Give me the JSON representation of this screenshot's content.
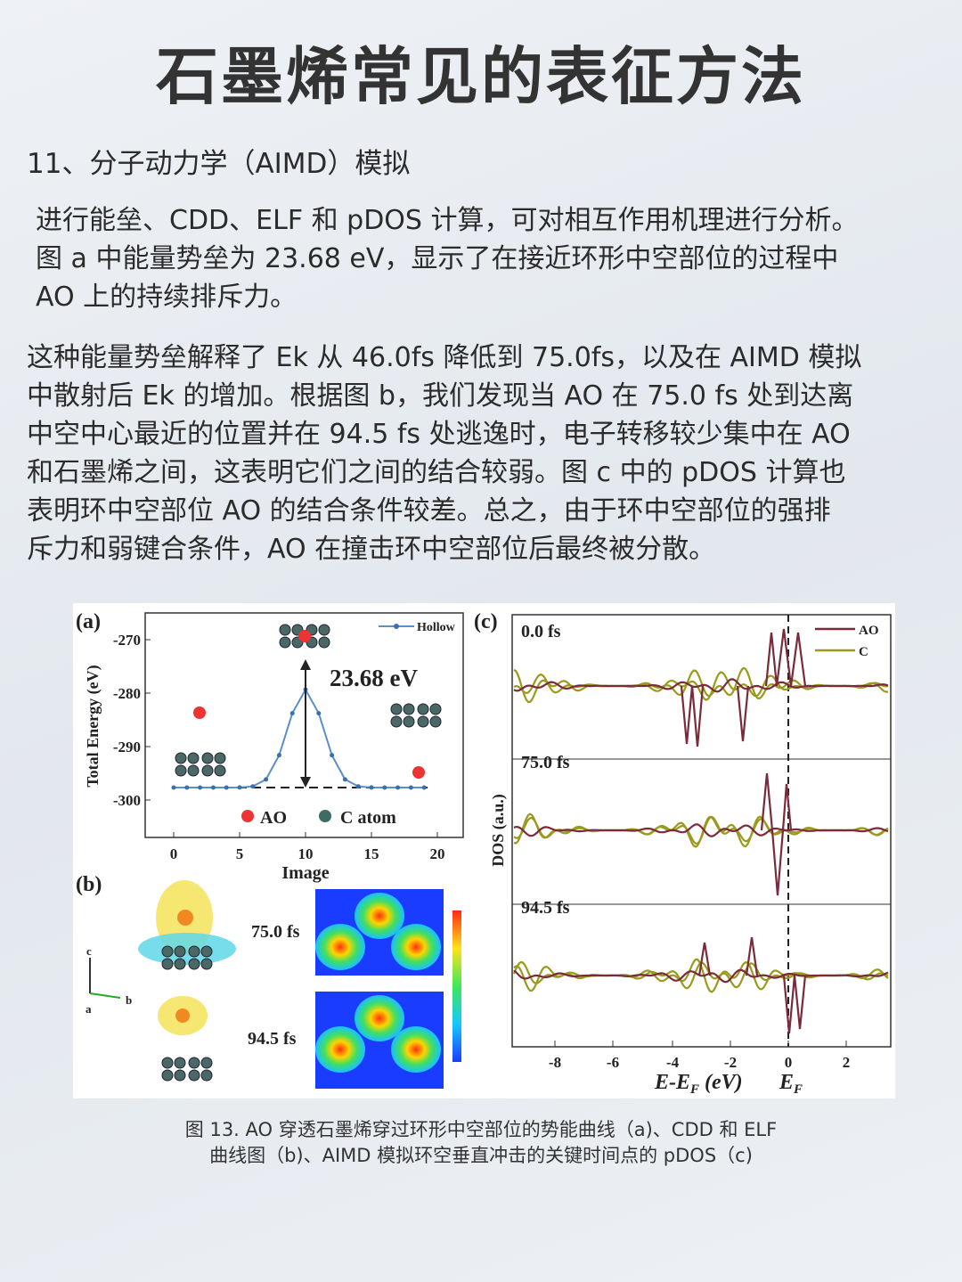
{
  "header": {
    "title": "石墨烯常见的表征方法"
  },
  "section": {
    "heading": "11、分子动力学（AIMD）模拟",
    "paragraphs": [
      [
        "进行能垒、CDD、ELF 和 pDOS 计算，可对相互作用机理进行分析。",
        "图 a 中能量势垒为 23.68 eV，显示了在接近环形中空部位的过程中",
        "AO 上的持续排斥力。"
      ],
      [
        "这种能量势垒解释了 Ek 从 46.0fs 降低到 75.0fs，以及在 AIMD 模拟",
        "中散射后 Ek 的增加。根据图 b，我们发现当 AO 在 75.0 fs 处到达离",
        "中空中心最近的位置并在 94.5 fs 处逃逸时，电子转移较少集中在 AO",
        "和石墨烯之间，这表明它们之间的结合较弱。图 c 中的 pDOS 计算也",
        "表明环中空部位 AO 的结合条件较差。总之，由于环中空部位的强排",
        "斥力和弱键合条件，AO 在撞击环中空部位后最终被分散。"
      ]
    ]
  },
  "figure": {
    "panel_a": {
      "label": "(a)",
      "y_label": "Total Energy (eV)",
      "x_label": "Image",
      "yticks": [
        "-270",
        "-280",
        "-290",
        "-300"
      ],
      "xticks": [
        "0",
        "5",
        "10",
        "15",
        "20"
      ],
      "legend": "Hollow",
      "annotation": "23.68 eV",
      "key": [
        "AO",
        "C atom"
      ]
    },
    "panel_b": {
      "label": "(b)",
      "times": [
        "75.0 fs",
        "94.5 fs"
      ],
      "axes": [
        "c",
        "b",
        "a"
      ]
    },
    "panel_c": {
      "label": "(c)",
      "times": [
        "0.0 fs",
        "75.0 fs",
        "94.5 fs"
      ],
      "legend": [
        "AO",
        "C"
      ],
      "y_label": "DOS (a.u.)",
      "xticks": [
        "-8",
        "-6",
        "-4",
        "-2",
        "0",
        "2"
      ],
      "x_label": [
        "E-E",
        "F",
        " (eV)"
      ],
      "fermi": [
        "E",
        "F"
      ]
    },
    "caption": [
      "图 13. AO 穿透石墨烯穿过环形中空部位的势能曲线（a)、CDD 和 ELF",
      "曲线图（b)、AIMD 模拟环空垂直冲击的关键时间点的 pDOS（c)"
    ]
  }
}
